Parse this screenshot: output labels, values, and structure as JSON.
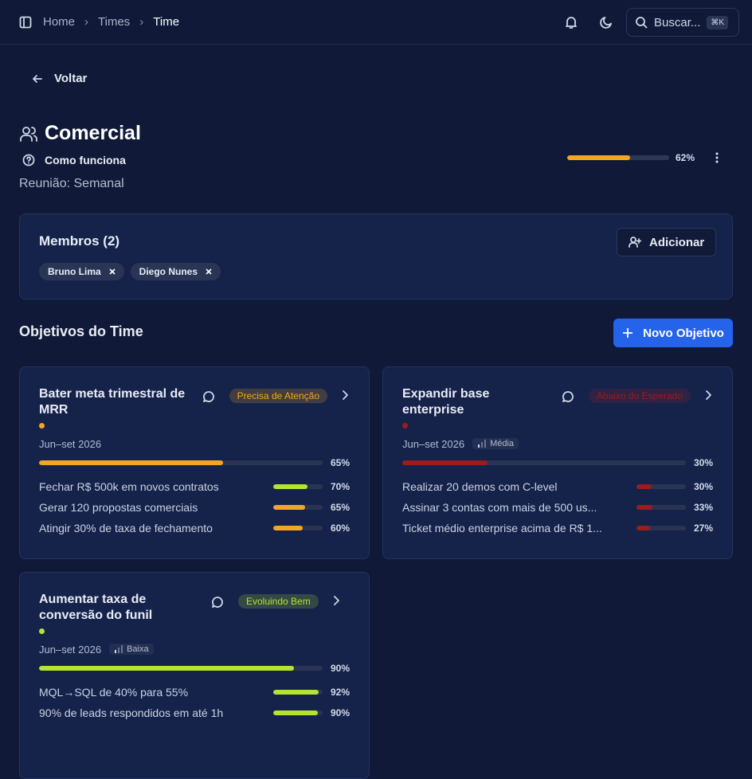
{
  "nav": {
    "breadcrumb": [
      "Home",
      "Times",
      "Time"
    ],
    "search": "Buscar...",
    "shortcut": "⌘K"
  },
  "back": "Voltar",
  "team": {
    "name": "Comercial",
    "help": "Como funciona",
    "meeting": "Reunião: Semanal",
    "progress": 62,
    "progress_label": "62%",
    "color": "#f5a524"
  },
  "members": {
    "title": "Membros (2)",
    "add": "Adicionar",
    "list": [
      "Bruno Lima",
      "Diego Nunes"
    ]
  },
  "objectives": {
    "title": "Objetivos do Time",
    "new": "Novo Objetivo",
    "items": [
      {
        "title": "Bater meta trimestral de MRR",
        "status": "Precisa de Atenção",
        "color": "#f5a524",
        "period": "Jun–set 2026",
        "progress": 65,
        "progress_label": "65%",
        "results": [
          {
            "name": "Fechar R$ 500k em novos contratos",
            "value": 70,
            "label": "70%",
            "color": "#b5e32e"
          },
          {
            "name": "Gerar 120 propostas comerciais",
            "value": 65,
            "label": "65%",
            "color": "#f5a524"
          },
          {
            "name": "Atingir 30% de taxa de fechamento",
            "value": 60,
            "label": "60%",
            "color": "#f5a524"
          }
        ]
      },
      {
        "title": "Expandir base enterprise",
        "status": "Abaixo do Esperado",
        "color": "#9b1c1c",
        "period": "Jun–set 2026",
        "priority": "Média",
        "progress": 30,
        "progress_label": "30%",
        "results": [
          {
            "name": "Realizar 20 demos com C-level",
            "value": 30,
            "label": "30%",
            "color": "#9b1c1c"
          },
          {
            "name": "Assinar 3 contas com mais de 500 us...",
            "value": 33,
            "label": "33%",
            "color": "#9b1c1c"
          },
          {
            "name": "Ticket médio enterprise acima de R$ 1...",
            "value": 27,
            "label": "27%",
            "color": "#9b1c1c"
          }
        ]
      },
      {
        "title": "Aumentar taxa de conversão do funil",
        "status": "Evoluindo Bem",
        "color": "#b5e32e",
        "period": "Jun–set 2026",
        "priority": "Baixa",
        "progress": 90,
        "progress_label": "90%",
        "results": [
          {
            "name": "MQL→SQL de 40% para 55%",
            "value": 92,
            "label": "92%",
            "color": "#b5e32e"
          },
          {
            "name": "90% de leads respondidos em até 1h",
            "value": 90,
            "label": "90%",
            "color": "#b5e32e"
          }
        ]
      }
    ]
  }
}
